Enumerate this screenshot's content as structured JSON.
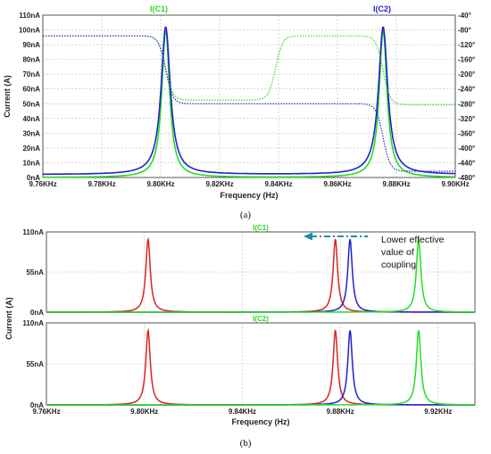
{
  "caption_a": "(a)",
  "caption_b": "(b)",
  "chart_data": [
    {
      "type": "line",
      "title": "",
      "xlabel": "Frequency (Hz)",
      "ylabel": "Current (A)",
      "xlim": [
        9.76,
        9.9
      ],
      "ylim": [
        0,
        110
      ],
      "y2lim": [
        -480,
        -40
      ],
      "grid": true,
      "legend": "top",
      "x_ticks": [
        "9.76KHz",
        "9.78KHz",
        "9.80KHz",
        "9.82KHz",
        "9.84KHz",
        "9.86KHz",
        "9.88KHz",
        "9.90KHz"
      ],
      "y_ticks": [
        "0nA",
        "10nA",
        "20nA",
        "30nA",
        "40nA",
        "50nA",
        "60nA",
        "70nA",
        "80nA",
        "90nA",
        "100nA",
        "110nA"
      ],
      "y2_ticks": [
        "-480°",
        "-440°",
        "-400°",
        "-360°",
        "-320°",
        "-280°",
        "-240°",
        "-200°",
        "-160°",
        "-120°",
        "-80°",
        "-40°"
      ],
      "series": [
        {
          "name": "I(C1)",
          "color": "#22dd22",
          "kind": "magnitude",
          "peaks": [
            [
              9.8017,
              100
            ],
            [
              9.8755,
              100
            ]
          ]
        },
        {
          "name": "I(C2)",
          "color": "#2222cc",
          "kind": "magnitude",
          "peaks": [
            [
              9.8017,
              100
            ],
            [
              9.8755,
              100
            ]
          ]
        },
        {
          "name": "",
          "color": "#22dd22",
          "kind": "phase",
          "levels_deg": [
            -96,
            -270,
            -96,
            -283
          ]
        },
        {
          "name": "",
          "color": "#2222cc",
          "kind": "phase",
          "levels_deg": [
            -96,
            -280,
            -463
          ]
        }
      ]
    },
    {
      "type": "line",
      "title": "I(C1)",
      "xlabel": "",
      "ylabel": "Current (A)",
      "xlim": [
        9.76,
        9.935
      ],
      "ylim": [
        0,
        110
      ],
      "grid": true,
      "x_ticks": [],
      "y_ticks": [
        "0nA",
        "55nA",
        "110nA"
      ],
      "annotation": "Lower effective value of coupling",
      "series": [
        {
          "color": "#dd2222",
          "peaks": [
            [
              9.8015,
              100
            ],
            [
              9.878,
              100
            ]
          ]
        },
        {
          "color": "#2222cc",
          "peaks": [
            [
              9.884,
              100
            ]
          ]
        },
        {
          "color": "#22dd22",
          "peaks": [
            [
              9.912,
              100
            ]
          ]
        }
      ]
    },
    {
      "type": "line",
      "title": "I(C2)",
      "xlabel": "Frequency (Hz)",
      "ylabel": "",
      "xlim": [
        9.76,
        9.935
      ],
      "ylim": [
        0,
        110
      ],
      "grid": true,
      "x_ticks": [
        "9.76KHz",
        "9.80KHz",
        "9.84KHz",
        "9.88KHz",
        "9.92KHz"
      ],
      "y_ticks": [
        "0nA",
        "55nA",
        "110nA"
      ],
      "series": [
        {
          "color": "#dd2222",
          "peaks": [
            [
              9.8015,
              100
            ],
            [
              9.878,
              100
            ]
          ]
        },
        {
          "color": "#2222cc",
          "peaks": [
            [
              9.884,
              100
            ]
          ]
        },
        {
          "color": "#22dd22",
          "peaks": [
            [
              9.912,
              100
            ]
          ]
        }
      ]
    }
  ]
}
